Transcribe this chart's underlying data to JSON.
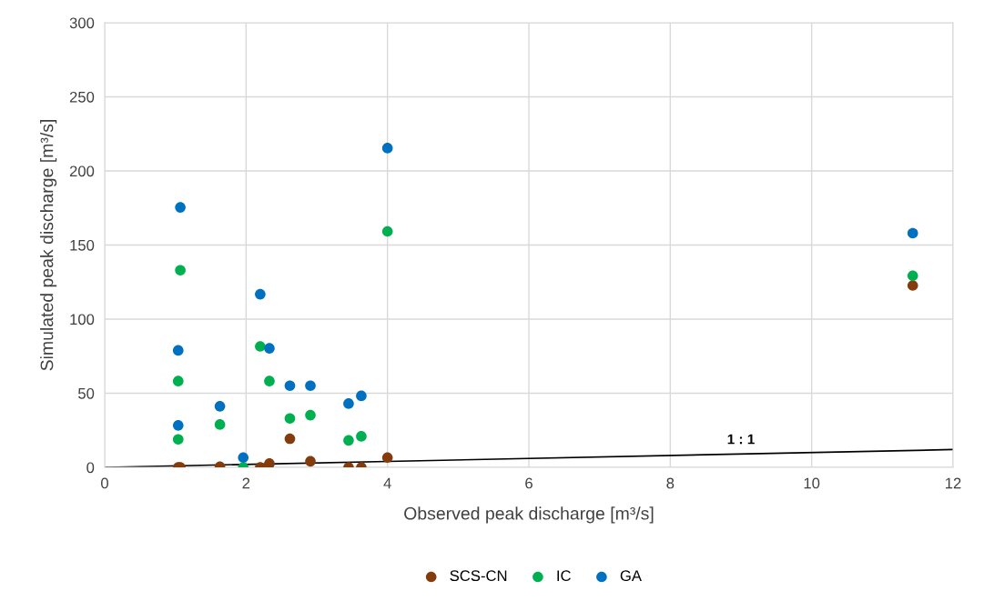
{
  "chart_data": {
    "type": "scatter",
    "xlabel": "Observed peak discharge [m³/s]",
    "ylabel": "Simulated peak discharge [m³/s]",
    "xlim": [
      0,
      12
    ],
    "xticks": [
      0,
      2,
      4,
      6,
      8,
      10,
      12
    ],
    "ylim": [
      0,
      300
    ],
    "yticks": [
      0,
      50,
      100,
      150,
      200,
      250,
      300
    ],
    "grid": true,
    "legend": "bottom",
    "marker": "circle",
    "series": [
      {
        "name": "SCS-CN",
        "color": "#843c0c",
        "x": [
          1.04,
          1.07,
          1.63,
          2.2,
          2.33,
          2.62,
          2.91,
          3.45,
          3.63,
          4.0,
          11.43
        ],
        "values": [
          0,
          0,
          0.4,
          0,
          2.5,
          19.3,
          4.1,
          0,
          0,
          6.6,
          122.7
        ]
      },
      {
        "name": "IC",
        "color": "#00b050",
        "x": [
          1.04,
          1.04,
          1.07,
          1.63,
          1.96,
          2.2,
          2.33,
          2.62,
          2.91,
          3.45,
          3.63,
          4.0,
          11.43
        ],
        "values": [
          58.2,
          18.9,
          133,
          28.9,
          0,
          81.6,
          58.2,
          33,
          35.2,
          18.2,
          20.9,
          159.2,
          129.3
        ]
      },
      {
        "name": "GA",
        "color": "#0070c0",
        "x": [
          1.04,
          1.04,
          1.07,
          1.63,
          1.96,
          2.2,
          2.33,
          2.62,
          2.91,
          3.45,
          3.63,
          4.0,
          11.43
        ],
        "values": [
          78.9,
          28.3,
          175.4,
          41.2,
          6.6,
          116.8,
          80.3,
          55.1,
          55.1,
          43,
          48.2,
          215.4,
          158
        ]
      },
      {
        "type": "line",
        "color": "#000000",
        "x": [
          0,
          12
        ],
        "values": [
          0,
          12
        ],
        "marker": "none",
        "line_style": "solid"
      }
    ],
    "annotations": [
      {
        "text": "1 : 1",
        "x": 9,
        "y": 9
      }
    ]
  }
}
